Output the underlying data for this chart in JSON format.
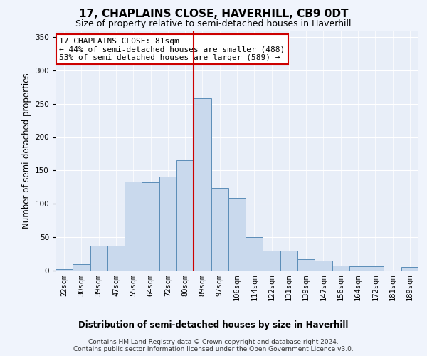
{
  "title": "17, CHAPLAINS CLOSE, HAVERHILL, CB9 0DT",
  "subtitle": "Size of property relative to semi-detached houses in Haverhill",
  "xlabel": "Distribution of semi-detached houses by size in Haverhill",
  "ylabel": "Number of semi-detached properties",
  "bin_labels": [
    "22sqm",
    "30sqm",
    "39sqm",
    "47sqm",
    "55sqm",
    "64sqm",
    "72sqm",
    "80sqm",
    "89sqm",
    "97sqm",
    "106sqm",
    "114sqm",
    "122sqm",
    "131sqm",
    "139sqm",
    "147sqm",
    "156sqm",
    "164sqm",
    "172sqm",
    "181sqm",
    "189sqm"
  ],
  "bar_heights": [
    2,
    10,
    37,
    37,
    133,
    132,
    141,
    165,
    258,
    124,
    109,
    50,
    30,
    30,
    17,
    15,
    7,
    6,
    6,
    0,
    5
  ],
  "bar_color": "#c9d9ed",
  "bar_edge_color": "#5b8db8",
  "vline_x": 7.5,
  "annotation_text": "17 CHAPLAINS CLOSE: 81sqm\n← 44% of semi-detached houses are smaller (488)\n53% of semi-detached houses are larger (589) →",
  "annotation_box_color": "#ffffff",
  "annotation_box_edge_color": "#cc0000",
  "vline_color": "#cc0000",
  "ylim": [
    0,
    360
  ],
  "yticks": [
    0,
    50,
    100,
    150,
    200,
    250,
    300,
    350
  ],
  "footer_text": "Contains HM Land Registry data © Crown copyright and database right 2024.\nContains public sector information licensed under the Open Government Licence v3.0.",
  "bg_color": "#e8eef8",
  "grid_color": "#ffffff",
  "title_fontsize": 11,
  "subtitle_fontsize": 9,
  "axis_label_fontsize": 8.5,
  "tick_fontsize": 7.5,
  "footer_fontsize": 6.5,
  "annotation_fontsize": 8
}
